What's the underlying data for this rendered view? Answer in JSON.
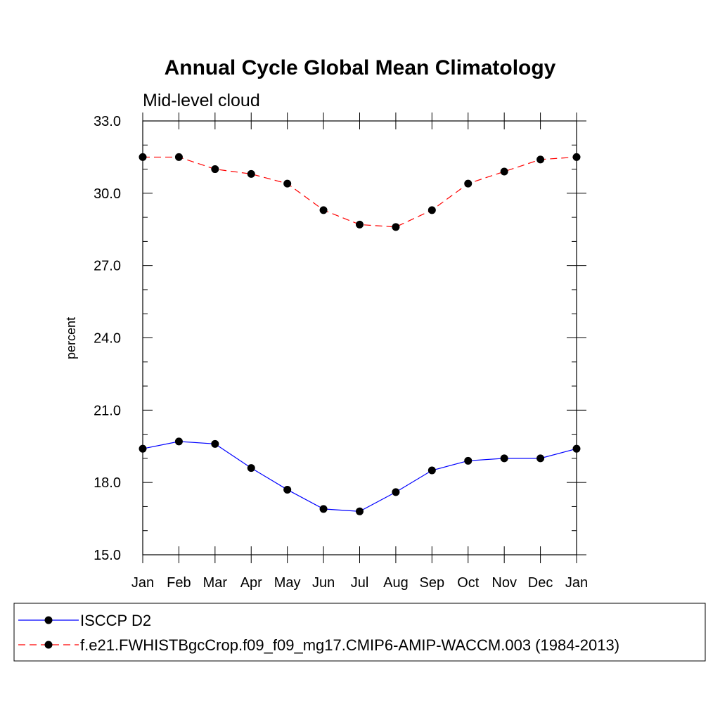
{
  "chart_data": {
    "type": "line",
    "title": "Annual Cycle Global Mean Climatology",
    "subtitle": "Mid-level cloud",
    "xlabel": "",
    "ylabel": "percent",
    "categories": [
      "Jan",
      "Feb",
      "Mar",
      "Apr",
      "May",
      "Jun",
      "Jul",
      "Aug",
      "Sep",
      "Oct",
      "Nov",
      "Dec",
      "Jan"
    ],
    "ylim": [
      15.0,
      33.0
    ],
    "yticks": [
      "15.0",
      "18.0",
      "21.0",
      "24.0",
      "27.0",
      "30.0",
      "33.0"
    ],
    "grid": false,
    "legend_position": "bottom",
    "series": [
      {
        "name": "ISCCP D2",
        "color": "#0000ff",
        "line_style": "solid",
        "marker": "filled-circle",
        "values": [
          19.4,
          19.7,
          19.6,
          18.6,
          17.7,
          16.9,
          16.8,
          17.6,
          18.5,
          18.9,
          19.0,
          19.0,
          19.4
        ]
      },
      {
        "name": "f.e21.FWHISTBgcCrop.f09_f09_mg17.CMIP6-AMIP-WACCM.003 (1984-2013)",
        "color": "#ff0000",
        "line_style": "dashed",
        "marker": "filled-circle",
        "values": [
          31.5,
          31.5,
          31.0,
          30.8,
          30.4,
          29.3,
          28.7,
          28.6,
          29.3,
          30.4,
          30.9,
          31.4,
          31.5
        ]
      }
    ]
  }
}
